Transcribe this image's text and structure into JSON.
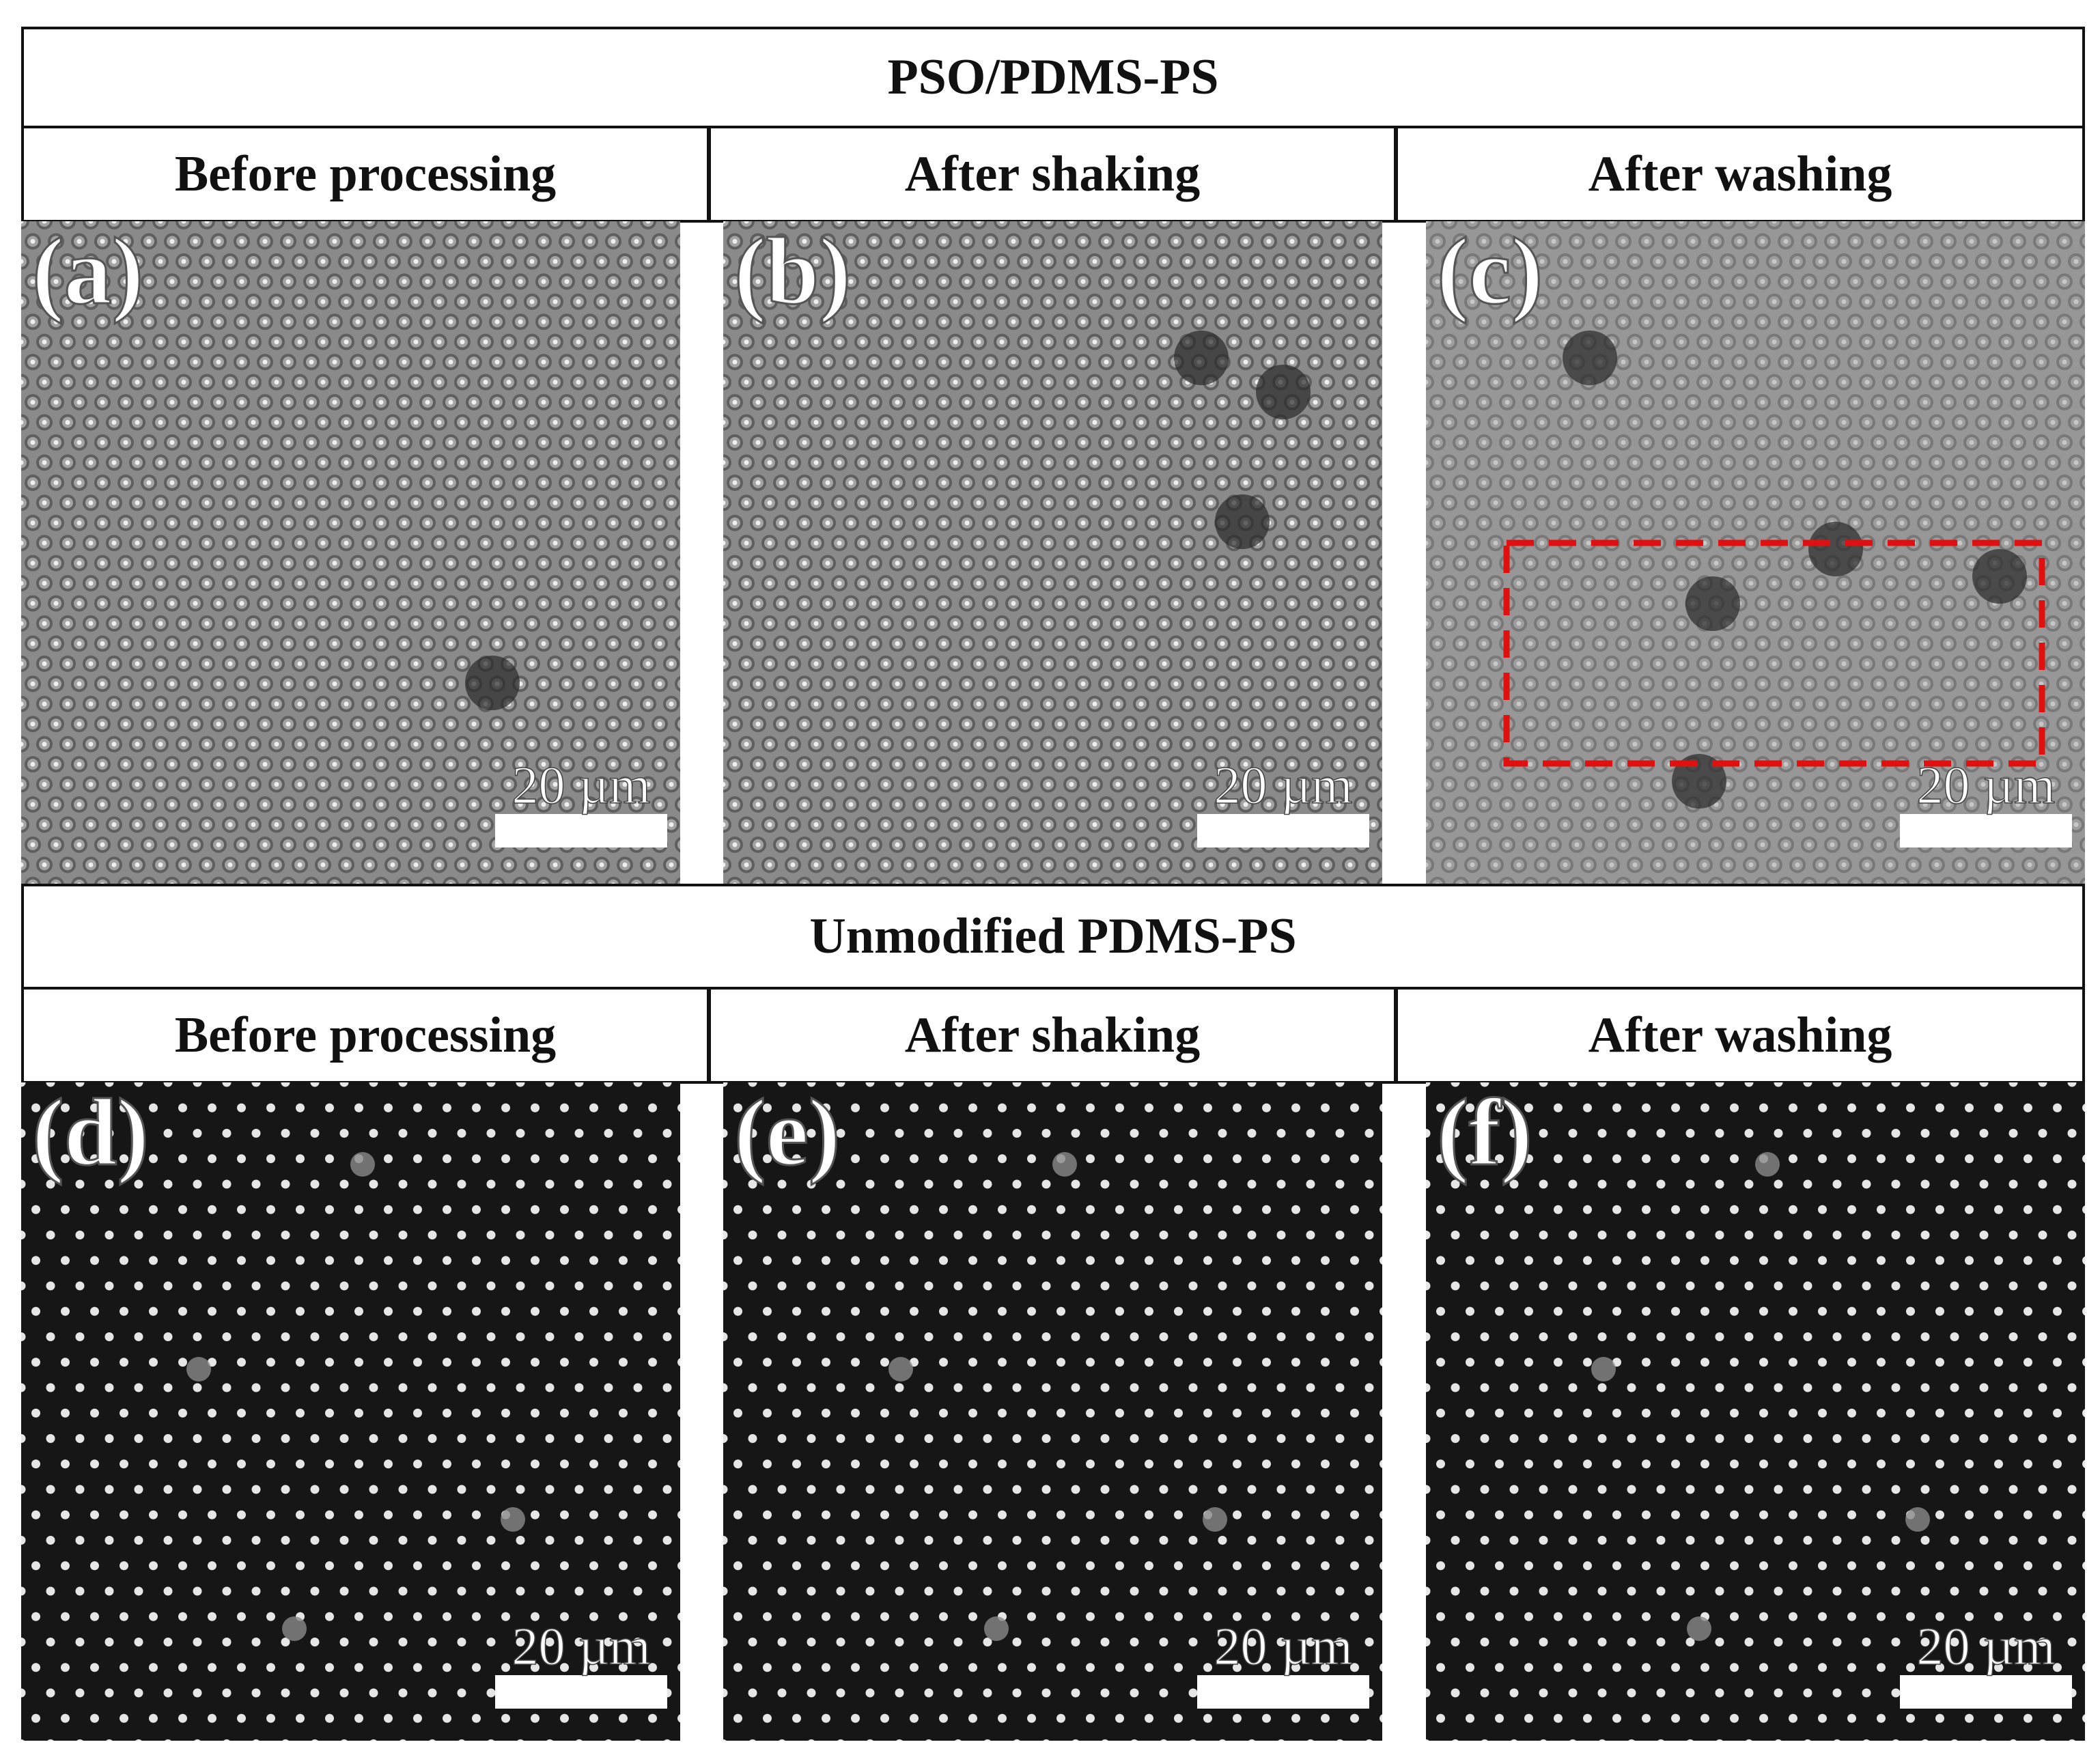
{
  "sections": [
    {
      "title": "PSO/PDMS-PS",
      "columns": [
        "Before processing",
        "After shaking",
        "After washing"
      ],
      "panels": [
        {
          "label": "(a)",
          "scale": "20 µm"
        },
        {
          "label": "(b)",
          "scale": "20 µm"
        },
        {
          "label": "(c)",
          "scale": "20 µm"
        }
      ]
    },
    {
      "title": "Unmodified PDMS-PS",
      "columns": [
        "Before processing",
        "After shaking",
        "After washing"
      ],
      "panels": [
        {
          "label": "(d)",
          "scale": "20 µm"
        },
        {
          "label": "(e)",
          "scale": "20 µm"
        },
        {
          "label": "(f)",
          "scale": "20 µm"
        }
      ]
    }
  ]
}
